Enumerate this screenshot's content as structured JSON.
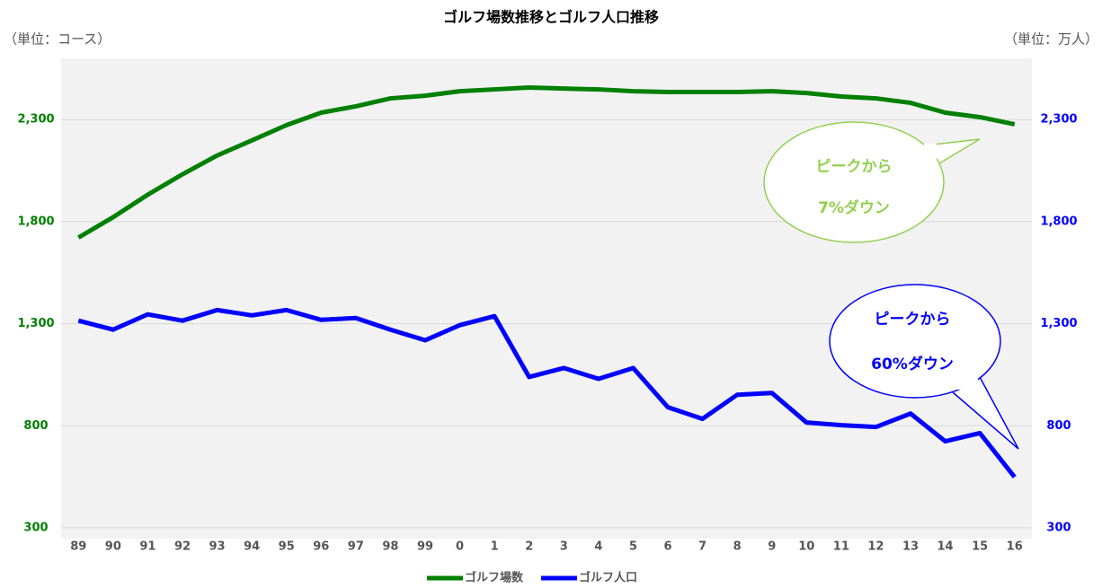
{
  "chart_data": {
    "type": "line",
    "title": "ゴルフ場数推移とゴルフ人口推移",
    "y_unit_label": "（単位：コース）",
    "y2_unit_label": "（単位：万人）",
    "categories": [
      "89",
      "90",
      "91",
      "92",
      "93",
      "94",
      "95",
      "96",
      "97",
      "98",
      "99",
      "0",
      "1",
      "2",
      "3",
      "4",
      "5",
      "6",
      "7",
      "8",
      "9",
      "10",
      "11",
      "12",
      "13",
      "14",
      "15",
      "16"
    ],
    "series": [
      {
        "name": "ゴルフ場数",
        "color": "#008000",
        "axis": "y",
        "values": [
          1722,
          1822,
          1932,
          2032,
          2124,
          2198,
          2273,
          2334,
          2365,
          2404,
          2417,
          2439,
          2448,
          2457,
          2452,
          2448,
          2439,
          2435,
          2435,
          2435,
          2439,
          2430,
          2413,
          2404,
          2382,
          2334,
          2312,
          2277
        ]
      },
      {
        "name": "ゴルフ人口",
        "color": "#0000ff",
        "axis": "y2",
        "values": [
          1315,
          1271,
          1346,
          1315,
          1367,
          1341,
          1367,
          1319,
          1328,
          1271,
          1219,
          1293,
          1337,
          1039,
          1083,
          1030,
          1083,
          891,
          834,
          952,
          961,
          816,
          803,
          794,
          860,
          724,
          764,
          549
        ]
      }
    ],
    "ylim": [
      300,
      2600
    ],
    "yticks": [
      300,
      800,
      {
        "value": 1300,
        "label": "1,300"
      },
      {
        "value": 1800,
        "label": "1,800"
      },
      {
        "value": 2300,
        "label": "2,300"
      }
    ],
    "y2lim": [
      300,
      2600
    ],
    "y2ticks": [
      300,
      800,
      {
        "value": 1300,
        "label": "1,300"
      },
      {
        "value": 1800,
        "label": "1,800"
      },
      {
        "value": 2300,
        "label": "2,300"
      }
    ],
    "grid": true,
    "legend": "bottom",
    "annotations": [
      {
        "lines": [
          "ピークから",
          "7%ダウン"
        ],
        "color": "#92d050"
      },
      {
        "lines": [
          "ピークから",
          "60%ダウン"
        ],
        "color": "#0000ff"
      }
    ]
  }
}
